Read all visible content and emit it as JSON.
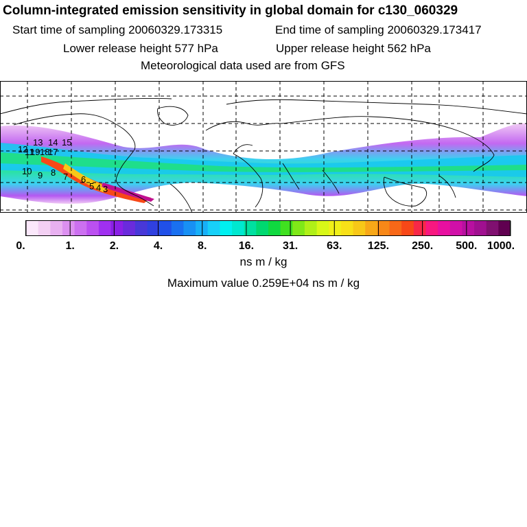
{
  "header": {
    "title": "Column-integrated emission sensitivity in global domain for c130_060329",
    "start_label": "Start time of sampling 20060329.173315",
    "end_label": "End time of sampling 20060329.173417",
    "lower_label": "Lower release height  577 hPa",
    "upper_label": "Upper release height  562 hPa",
    "met_label": "Meteorological data used are from GFS"
  },
  "colorbar": {
    "tick_labels": [
      "0.",
      "1.",
      "2.",
      "4.",
      "8.",
      "16.",
      "31.",
      "63.",
      "125.",
      "250.",
      "500.",
      "1000."
    ],
    "colors": [
      "#fbe8fb",
      "#f3d0f3",
      "#e8b0f0",
      "#dc90f0",
      "#cc70f0",
      "#bb50f0",
      "#a030f0",
      "#8a20e6",
      "#6a2bdc",
      "#4838d8",
      "#3040e0",
      "#2050e8",
      "#1a70f0",
      "#1890f4",
      "#18b0f8",
      "#18d0f8",
      "#00f0f0",
      "#00e8d0",
      "#00e0a0",
      "#00d870",
      "#10d840",
      "#40e020",
      "#80e818",
      "#b0f018",
      "#d8f818",
      "#f0f018",
      "#f8e018",
      "#f8c818",
      "#f8a818",
      "#f88818",
      "#f86818",
      "#f84818",
      "#f82848",
      "#f81880",
      "#e810a0",
      "#d010a8",
      "#b810a0",
      "#a01090",
      "#801070",
      "#600050"
    ],
    "units": "ns m / kg",
    "max_value_label": "Maximum value  0.259E+04 ns m / kg"
  },
  "map": {
    "trajectory_labels": [
      "13",
      "14",
      "15",
      "12",
      "11",
      "19",
      "18",
      "17",
      "10",
      "9",
      "8",
      "7",
      "6",
      "5",
      "4",
      "3"
    ]
  }
}
